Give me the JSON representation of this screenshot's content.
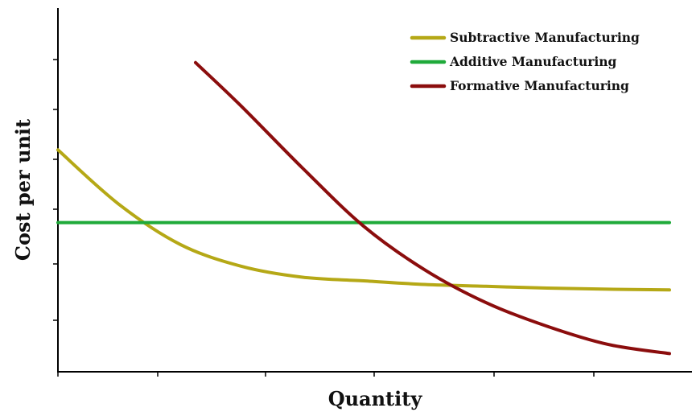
{
  "chart_data": {
    "type": "line",
    "xlabel": "Quantity",
    "ylabel": "Cost per unit",
    "xlim": [
      0,
      100
    ],
    "ylim": [
      0,
      100
    ],
    "legend_position": "top-right",
    "grid": false,
    "series": [
      {
        "name": "Subtractive Manufacturing",
        "color": "#b5a816",
        "x": [
          0,
          10,
          20,
          30,
          40,
          50,
          60,
          70,
          80,
          90,
          100
        ],
        "y": [
          61,
          46,
          35,
          29,
          26,
          25,
          24,
          23.5,
          23,
          22.7,
          22.5
        ]
      },
      {
        "name": "Additive Manufacturing",
        "color": "#1faa3a",
        "x": [
          0,
          100
        ],
        "y": [
          41,
          41
        ]
      },
      {
        "name": "Formative Manufacturing",
        "color": "#8b0d0d",
        "x": [
          22.5,
          30,
          40,
          50,
          60,
          70,
          80,
          90,
          100
        ],
        "y": [
          85,
          73,
          56,
          40,
          28,
          19,
          12.5,
          7.5,
          5
        ]
      }
    ]
  }
}
